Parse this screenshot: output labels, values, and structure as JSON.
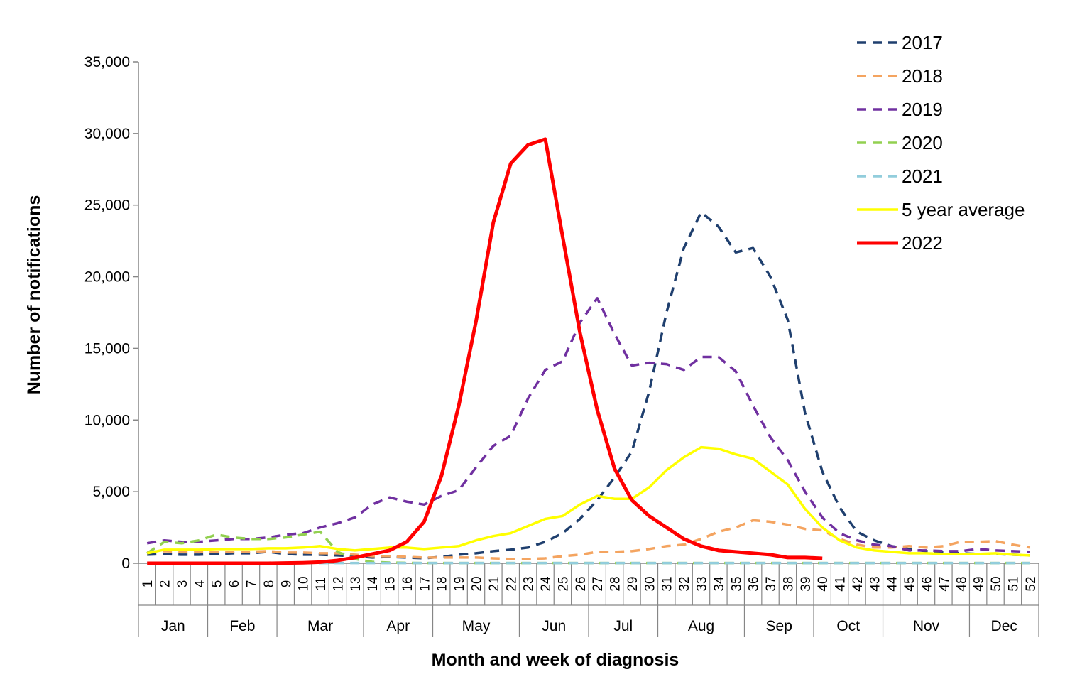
{
  "chart_data": {
    "type": "line",
    "title": "",
    "xlabel": "Month and week of diagnosis",
    "ylabel": "Number of notifications",
    "ylim": [
      0,
      35000
    ],
    "yticks": [
      0,
      5000,
      10000,
      15000,
      20000,
      25000,
      30000,
      35000
    ],
    "ytick_labels": [
      "0",
      "5,000",
      "10,000",
      "15,000",
      "20,000",
      "25,000",
      "30,000",
      "35,000"
    ],
    "weeks": [
      "1",
      "2",
      "3",
      "4",
      "5",
      "6",
      "7",
      "8",
      "9",
      "10",
      "11",
      "12",
      "13",
      "14",
      "15",
      "16",
      "17",
      "18",
      "19",
      "20",
      "21",
      "22",
      "23",
      "24",
      "25",
      "26",
      "27",
      "28",
      "29",
      "30",
      "31",
      "32",
      "33",
      "34",
      "35",
      "36",
      "37",
      "38",
      "39",
      "40",
      "41",
      "42",
      "43",
      "44",
      "45",
      "46",
      "47",
      "48",
      "49",
      "50",
      "51",
      "52"
    ],
    "months": [
      {
        "label": "Jan",
        "first_week": 1,
        "last_week": 4
      },
      {
        "label": "Feb",
        "first_week": 5,
        "last_week": 8
      },
      {
        "label": "Mar",
        "first_week": 9,
        "last_week": 13
      },
      {
        "label": "Apr",
        "first_week": 14,
        "last_week": 17
      },
      {
        "label": "May",
        "first_week": 18,
        "last_week": 22
      },
      {
        "label": "Jun",
        "first_week": 23,
        "last_week": 26
      },
      {
        "label": "Jul",
        "first_week": 27,
        "last_week": 30
      },
      {
        "label": "Aug",
        "first_week": 31,
        "last_week": 35
      },
      {
        "label": "Sep",
        "first_week": 36,
        "last_week": 39
      },
      {
        "label": "Oct",
        "first_week": 40,
        "last_week": 43
      },
      {
        "label": "Nov",
        "first_week": 44,
        "last_week": 48
      },
      {
        "label": "Dec",
        "first_week": 49,
        "last_week": 52
      }
    ],
    "legend_position": "top-right",
    "grid": false,
    "series": [
      {
        "name": "2017",
        "color": "#1f3f6e",
        "style": "dashed",
        "values": [
          600,
          650,
          600,
          600,
          650,
          700,
          700,
          800,
          650,
          600,
          600,
          550,
          500,
          400,
          450,
          400,
          350,
          450,
          600,
          700,
          850,
          950,
          1100,
          1500,
          2100,
          3100,
          4400,
          6000,
          7800,
          12000,
          17500,
          22000,
          24500,
          23500,
          21700,
          22000,
          20000,
          17000,
          10500,
          6400,
          3900,
          2200,
          1600,
          1200,
          1000,
          850,
          750,
          700,
          650,
          650,
          600,
          550
        ]
      },
      {
        "name": "2018",
        "color": "#f4a460",
        "style": "dashed",
        "values": [
          800,
          850,
          800,
          800,
          800,
          800,
          800,
          850,
          750,
          750,
          700,
          700,
          600,
          500,
          500,
          450,
          400,
          400,
          400,
          400,
          350,
          300,
          300,
          350,
          500,
          600,
          800,
          800,
          850,
          1000,
          1200,
          1300,
          1700,
          2200,
          2500,
          3000,
          2900,
          2700,
          2400,
          2300,
          1700,
          1300,
          1100,
          1100,
          1200,
          1100,
          1200,
          1500,
          1500,
          1550,
          1300,
          1100
        ]
      },
      {
        "name": "2019",
        "color": "#7030a0",
        "style": "dashed",
        "values": [
          1400,
          1600,
          1500,
          1500,
          1600,
          1700,
          1700,
          1800,
          2000,
          2100,
          2500,
          2800,
          3200,
          4100,
          4600,
          4300,
          4100,
          4700,
          5100,
          6700,
          8200,
          8900,
          11500,
          13500,
          14100,
          16800,
          18500,
          16000,
          13800,
          14000,
          13900,
          13500,
          14400,
          14400,
          13400,
          11000,
          8800,
          7200,
          5000,
          3200,
          2100,
          1600,
          1300,
          1200,
          900,
          900,
          850,
          850,
          1000,
          900,
          850,
          800
        ]
      },
      {
        "name": "2020",
        "color": "#92d050",
        "style": "dashed",
        "values": [
          700,
          1500,
          1400,
          1600,
          2000,
          1800,
          1700,
          1700,
          1800,
          2000,
          2200,
          800,
          300,
          100,
          50,
          30,
          20,
          20,
          20,
          20,
          20,
          20,
          20,
          20,
          20,
          20,
          20,
          20,
          20,
          20,
          20,
          20,
          20,
          20,
          20,
          20,
          20,
          20,
          20,
          20,
          20,
          20,
          20,
          20,
          20,
          20,
          20,
          20,
          20,
          20,
          20,
          20
        ]
      },
      {
        "name": "2021",
        "color": "#92cddc",
        "style": "dashed",
        "values": [
          20,
          20,
          20,
          20,
          20,
          20,
          20,
          20,
          20,
          20,
          20,
          20,
          20,
          20,
          20,
          20,
          20,
          20,
          20,
          20,
          20,
          20,
          20,
          20,
          20,
          20,
          20,
          20,
          20,
          20,
          20,
          20,
          20,
          20,
          20,
          20,
          20,
          20,
          20,
          20,
          20,
          20,
          20,
          20,
          20,
          20,
          20,
          20,
          20,
          20,
          20,
          20
        ]
      },
      {
        "name": "5 year average",
        "color": "#ffff00",
        "style": "solid",
        "values": [
          700,
          950,
          950,
          950,
          1000,
          1000,
          1000,
          1050,
          1050,
          1100,
          1200,
          1000,
          900,
          1000,
          1100,
          1100,
          1000,
          1100,
          1200,
          1600,
          1900,
          2100,
          2600,
          3100,
          3300,
          4100,
          4700,
          4500,
          4500,
          5300,
          6500,
          7400,
          8100,
          8000,
          7600,
          7300,
          6400,
          5500,
          3800,
          2500,
          1600,
          1100,
          900,
          800,
          700,
          700,
          650,
          650,
          650,
          700,
          600,
          550
        ]
      },
      {
        "name": "2022",
        "color": "#ff0000",
        "style": "solid",
        "values": [
          0,
          0,
          0,
          0,
          0,
          0,
          0,
          0,
          20,
          40,
          80,
          200,
          400,
          650,
          900,
          1500,
          2900,
          6100,
          11000,
          16900,
          23800,
          27900,
          29200,
          29600,
          22800,
          16100,
          10700,
          6600,
          4400,
          3300,
          2500,
          1700,
          1200,
          900,
          800,
          700,
          600,
          400,
          400,
          350,
          null,
          null,
          null,
          null,
          null,
          null,
          null,
          null,
          null,
          null,
          null,
          null
        ]
      }
    ]
  }
}
